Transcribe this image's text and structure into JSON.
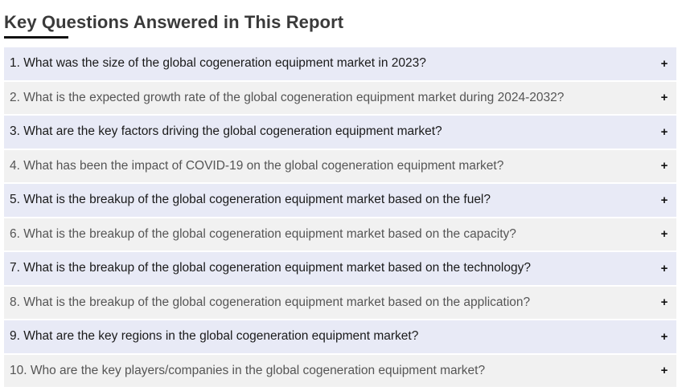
{
  "section": {
    "title": "Key Questions Answered in This Report"
  },
  "faq": {
    "expand_icon": "+",
    "items": [
      {
        "question": "1. What was the size of the global cogeneration equipment market in 2023?"
      },
      {
        "question": "2. What is the expected growth rate of the global cogeneration equipment market during 2024-2032?"
      },
      {
        "question": "3. What are the key factors driving the global cogeneration equipment market?"
      },
      {
        "question": "4. What has been the impact of COVID-19 on the global cogeneration equipment market?"
      },
      {
        "question": "5. What is the breakup of the global cogeneration equipment market based on the fuel?"
      },
      {
        "question": "6. What is the breakup of the global cogeneration equipment market based on the capacity?"
      },
      {
        "question": "7. What is the breakup of the global cogeneration equipment market based on the technology?"
      },
      {
        "question": "8. What is the breakup of the global cogeneration equipment market based on the application?"
      },
      {
        "question": "9. What are the key regions in the global cogeneration equipment market?"
      },
      {
        "question": "10. Who are the key players/companies in the global cogeneration equipment market?"
      }
    ]
  },
  "colors": {
    "odd_row_bg": "#e8eaf6",
    "even_row_bg": "#f1f1f1",
    "title_text": "#3a3a3a",
    "underline": "#111111"
  }
}
